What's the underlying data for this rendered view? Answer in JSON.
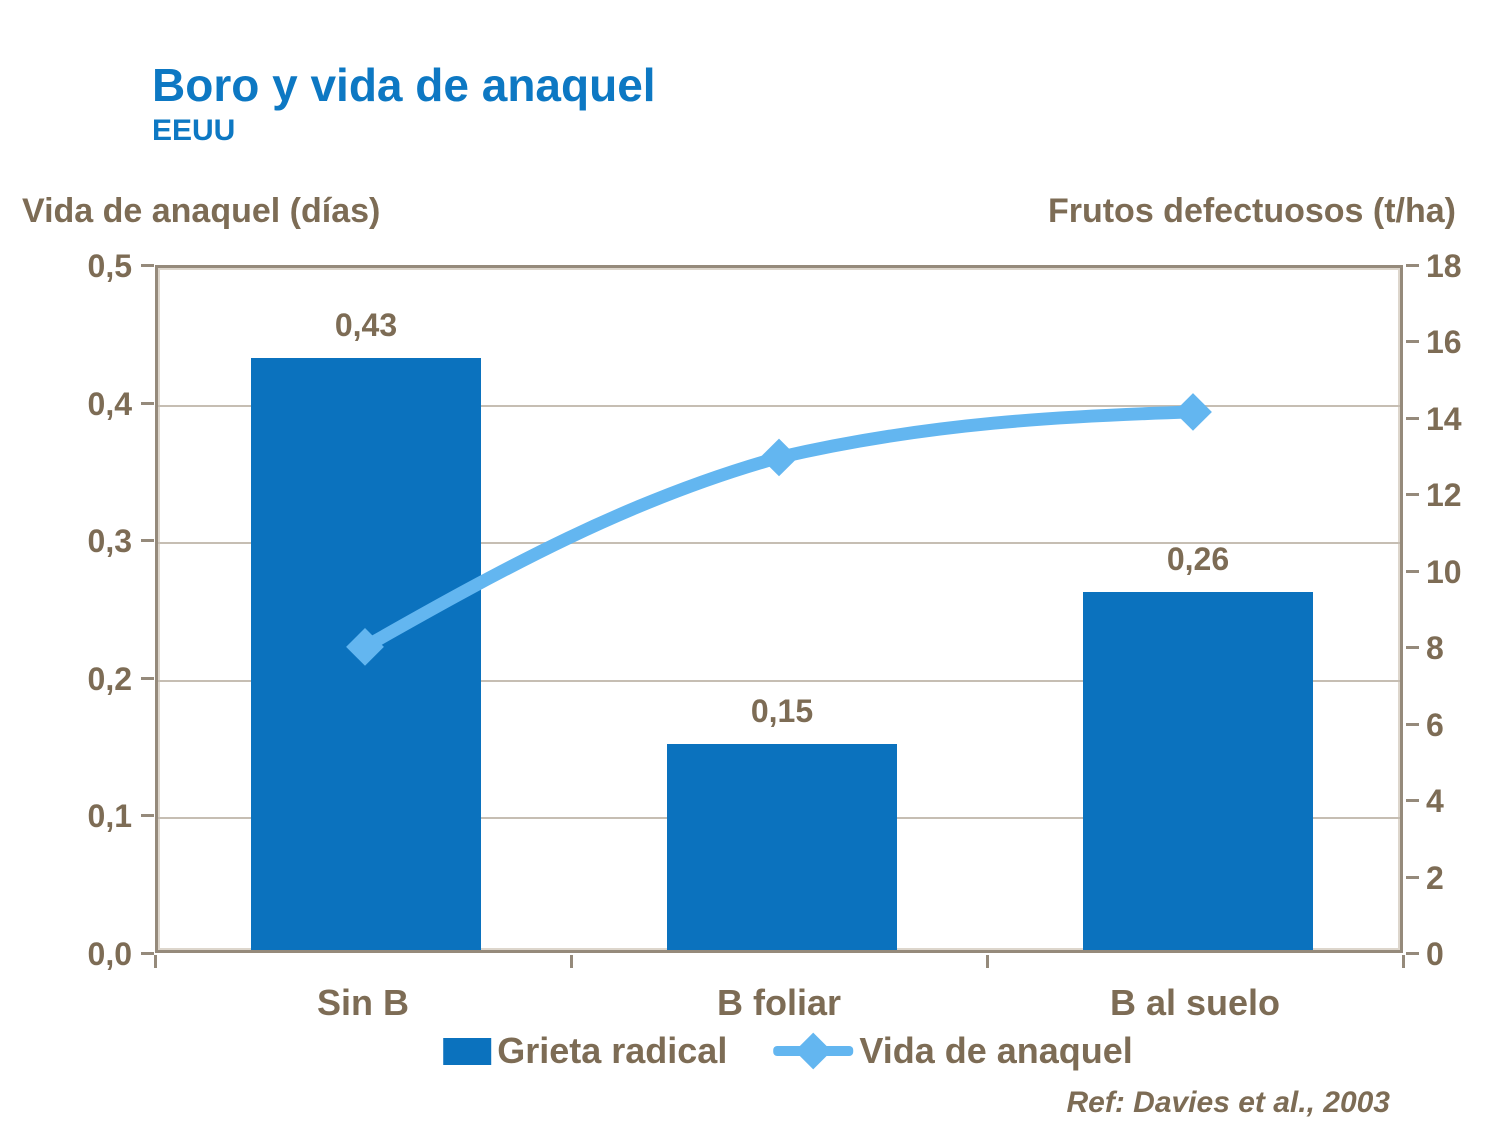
{
  "title": "Boro y vida de anaquel",
  "subtitle": "EEUU",
  "left_axis_title": "Vida de anaquel (días)",
  "right_axis_title": "Frutos defectuosos (t/ha)",
  "footer": {
    "reference": "Ref: Davies et al., 2003"
  },
  "colors": {
    "title_blue": "#0d78c3",
    "text_brown": "#7d6c55",
    "bar_blue": "#0b72be",
    "line_blue": "#63b6f0",
    "axis_border": "#958a7b",
    "gridline": "#c6beb3"
  },
  "chart_data": {
    "type": "bar",
    "subtype": "combo bar + line, dual axis",
    "categories": [
      "Sin B",
      "B foliar",
      "B al suelo"
    ],
    "series": [
      {
        "name": "Grieta radical",
        "type": "bar",
        "axis": "left",
        "values": [
          0.43,
          0.15,
          0.26
        ],
        "value_labels": [
          "0,43",
          "0,15",
          "0,26"
        ],
        "color": "#0b72be"
      },
      {
        "name": "Vida de anaquel",
        "type": "line",
        "axis": "right",
        "values": [
          8,
          13,
          14.2
        ],
        "marker": "diamond",
        "color": "#63b6f0"
      }
    ],
    "left_axis": {
      "title": "Vida de anaquel (días)",
      "min": 0,
      "max": 0.5,
      "step": 0.1,
      "tick_labels_top_to_bottom": [
        "0,5",
        "0,4",
        "0,3",
        "0,2",
        "0,1",
        "0,0"
      ]
    },
    "right_axis": {
      "title": "Frutos defectuosos (t/ha)",
      "min": 0,
      "max": 18,
      "step": 2,
      "tick_labels_top_to_bottom": [
        "18",
        "16",
        "14",
        "12",
        "10",
        "8",
        "6",
        "4",
        "2",
        "0"
      ]
    },
    "grid": "horizontal gridlines at left-axis steps",
    "legend_position": "bottom center"
  }
}
